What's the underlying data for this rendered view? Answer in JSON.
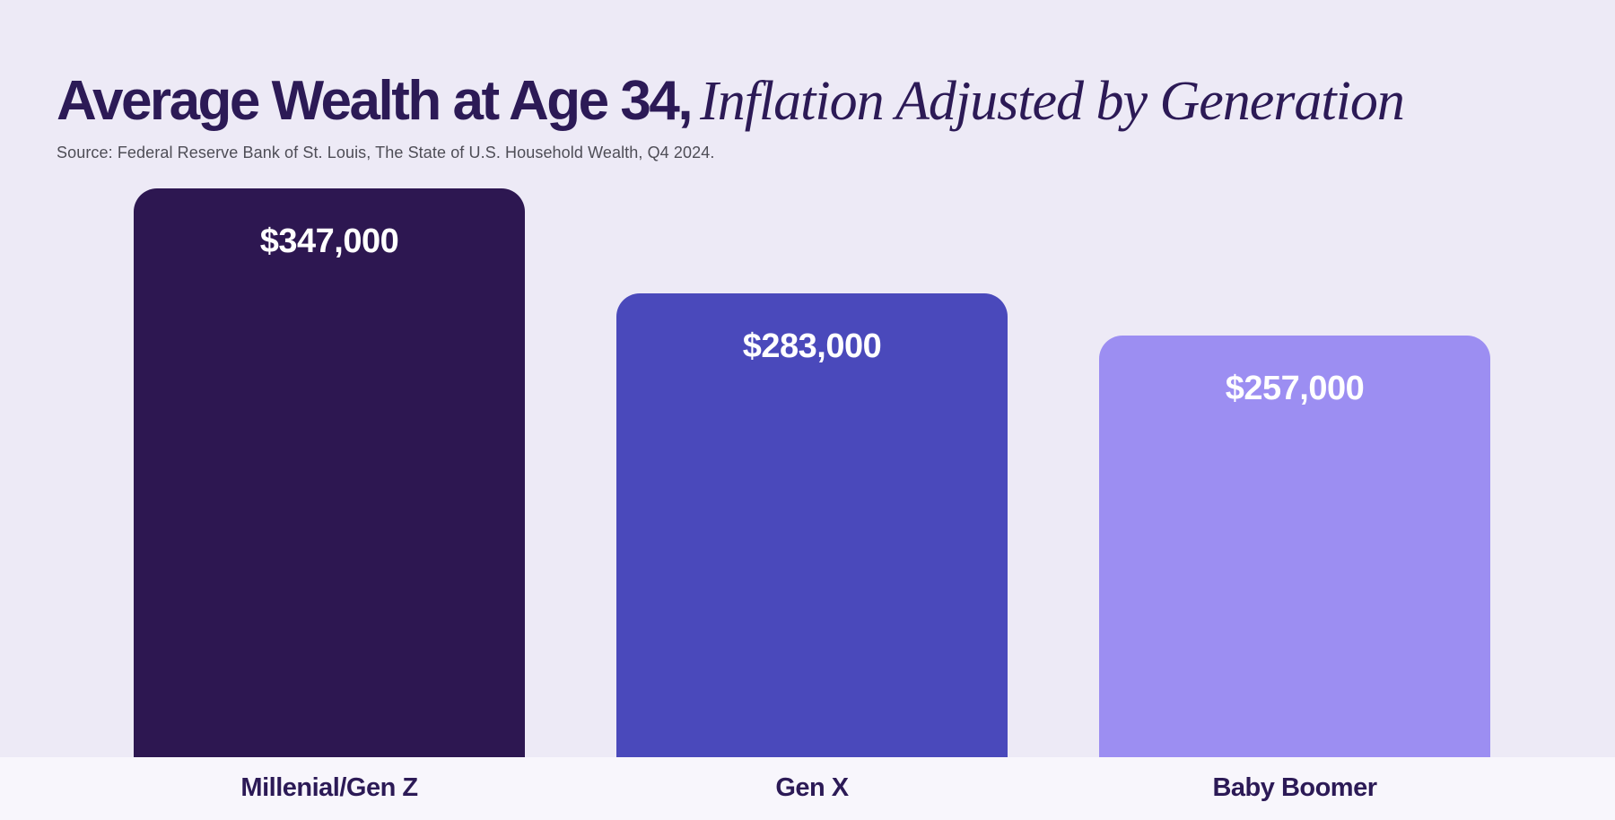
{
  "header": {
    "title_bold": "Average Wealth at Age 34,",
    "title_italic": "Inflation Adjusted by Generation",
    "source": "Source: Federal Reserve Bank of St. Louis, The State of U.S. Household Wealth, Q4 2024."
  },
  "chart_data": {
    "type": "bar",
    "title": "Average Wealth at Age 34, Inflation Adjusted by Generation",
    "subtitle": "Source: Federal Reserve Bank of St. Louis, The State of U.S. Household Wealth, Q4 2024.",
    "categories": [
      "Millenial/Gen Z",
      "Gen X",
      "Baby Boomer"
    ],
    "values": [
      347000,
      283000,
      257000
    ],
    "value_labels": [
      "$347,000",
      "$283,000",
      "$257,000"
    ],
    "bar_colors": [
      "#2D1751",
      "#4A49BB",
      "#9C8EF2"
    ],
    "xlabel": "",
    "ylabel": "",
    "ylim": [
      0,
      347000
    ],
    "grid": false,
    "legend": "none",
    "value_label_position": "inside-top",
    "category_label_position": "below-baseline"
  },
  "colors": {
    "background": "#EDEAF6",
    "footer_background": "#F8F6FC",
    "title_text": "#2C1A56",
    "source_text": "#4E4D56",
    "value_text": "#FFFFFF",
    "category_text": "#2C1A56"
  }
}
